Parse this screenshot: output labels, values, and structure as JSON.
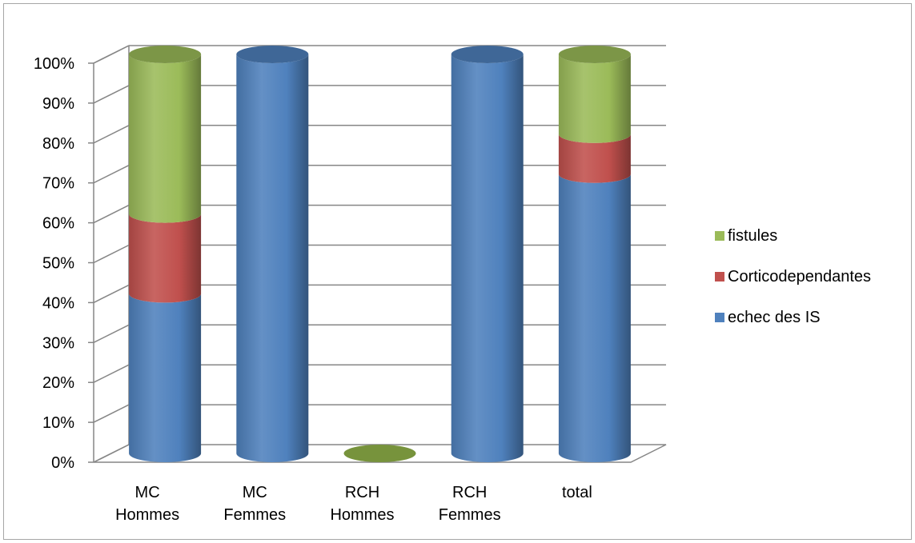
{
  "chart_data": {
    "type": "bar",
    "stacked": true,
    "style": "3d-cylinder",
    "categories": [
      [
        "MC",
        "Hommes"
      ],
      [
        "MC",
        "Femmes"
      ],
      [
        "RCH",
        "Hommes"
      ],
      [
        "RCH",
        "Femmes"
      ],
      [
        "total"
      ]
    ],
    "series": [
      {
        "name": "echec des IS",
        "color": "#4f81bd",
        "values": [
          40,
          100,
          0,
          100,
          70
        ]
      },
      {
        "name": "Corticodependantes",
        "color": "#c0504d",
        "values": [
          20,
          0,
          0,
          0,
          10
        ]
      },
      {
        "name": "fistules",
        "color": "#9bbb59",
        "values": [
          40,
          0,
          0,
          0,
          20
        ]
      }
    ],
    "yticks": [
      "0%",
      "10%",
      "20%",
      "30%",
      "40%",
      "50%",
      "60%",
      "70%",
      "80%",
      "90%",
      "100%"
    ],
    "ylim": [
      0,
      100
    ],
    "grid": true,
    "legend": "right"
  }
}
